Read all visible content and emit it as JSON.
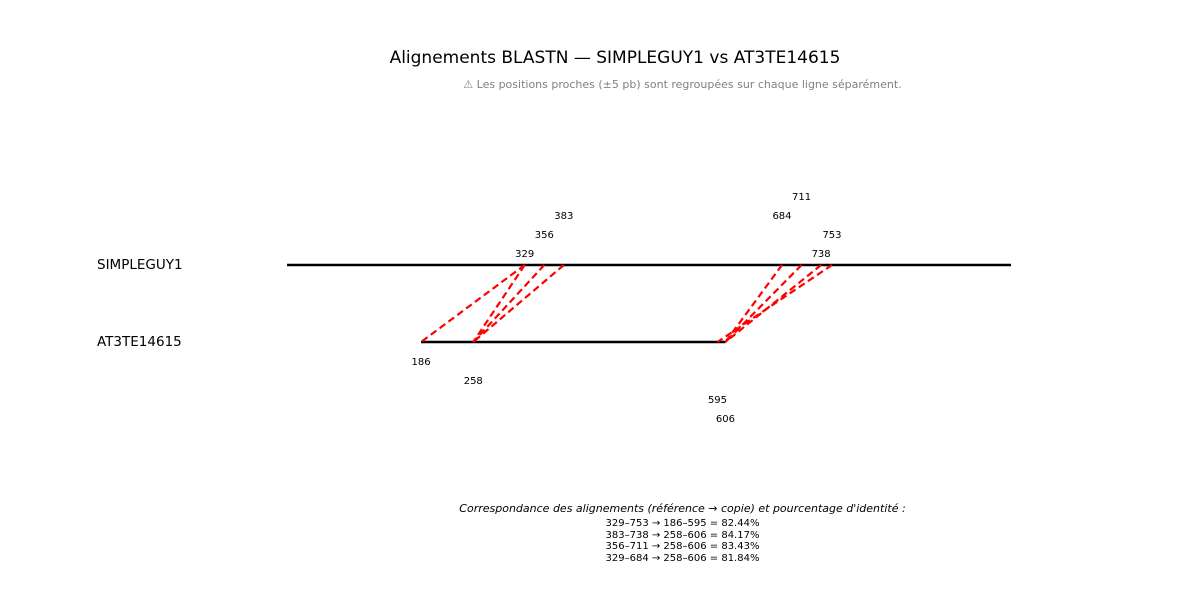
{
  "title": "Alignements BLASTN — SIMPLEGUY1 vs AT3TE14615",
  "note": "⚠ Les positions proches (±5 pb) sont regroupées sur chaque ligne séparément.",
  "sequences": {
    "top": {
      "name": "SIMPLEGUY1",
      "start": 1,
      "end": 1000
    },
    "bottom": {
      "name": "AT3TE14615",
      "start": 186,
      "end": 606
    }
  },
  "alignments": [
    {
      "ref_start": 329,
      "ref_end": 753,
      "copy_start": 186,
      "copy_end": 595,
      "identity": 82.44
    },
    {
      "ref_start": 383,
      "ref_end": 738,
      "copy_start": 258,
      "copy_end": 606,
      "identity": 84.17
    },
    {
      "ref_start": 356,
      "ref_end": 711,
      "copy_start": 258,
      "copy_end": 606,
      "identity": 83.43
    },
    {
      "ref_start": 329,
      "ref_end": 684,
      "copy_start": 258,
      "copy_end": 606,
      "identity": 81.84
    }
  ],
  "top_position_labels": [
    "329",
    "356",
    "383",
    "684",
    "711",
    "738",
    "753"
  ],
  "bottom_position_labels": [
    "186",
    "258",
    "595",
    "606"
  ],
  "legend": {
    "title": "Correspondance des alignements (référence → copie) et pourcentage d'identité :",
    "lines": [
      "329–753 → 186–595 = 82.44%",
      "383–738 → 258–606 = 84.17%",
      "356–711 → 258–606 = 83.43%",
      "329–684 → 258–606 = 81.84%"
    ]
  },
  "colors": {
    "alignment_line": "#ff0000",
    "sequence_line": "#000000"
  }
}
